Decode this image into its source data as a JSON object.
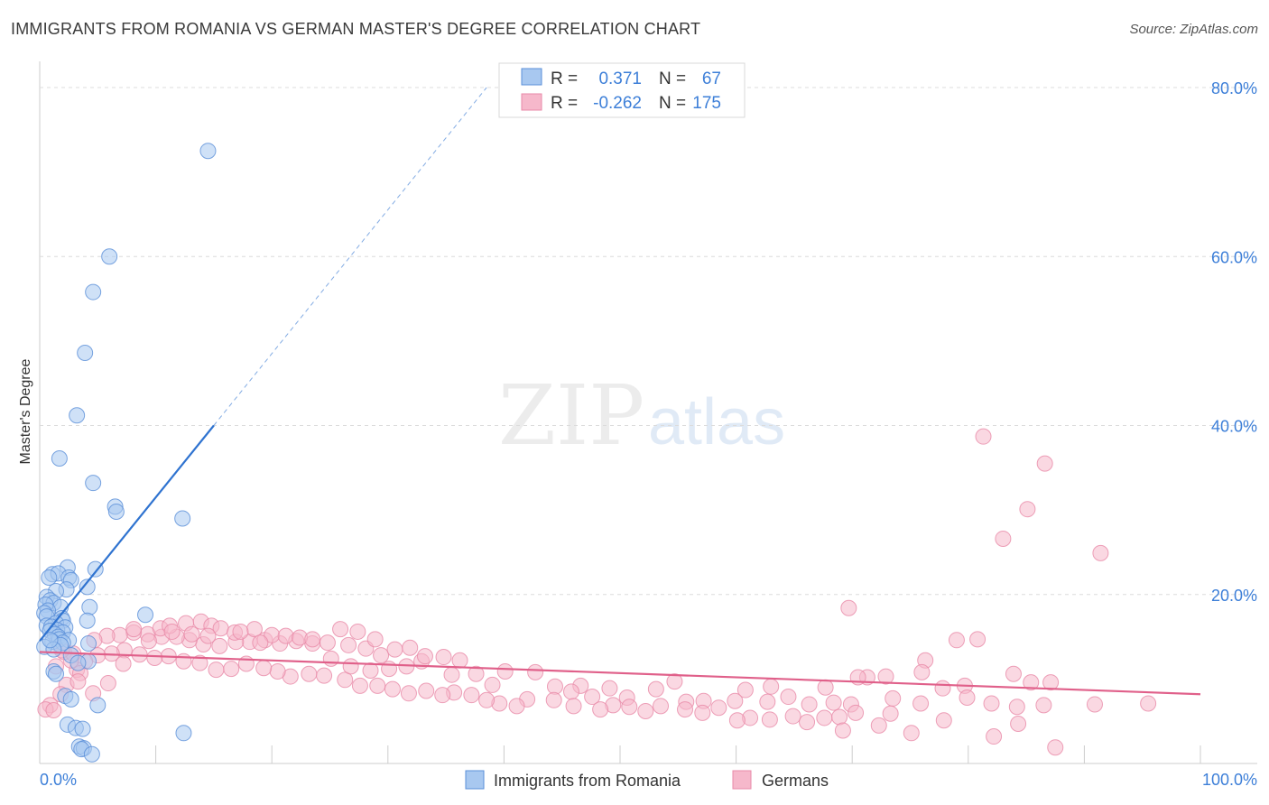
{
  "header": {
    "title": "IMMIGRANTS FROM ROMANIA VS GERMAN MASTER'S DEGREE CORRELATION CHART",
    "source": "Source: ZipAtlas.com"
  },
  "watermark": {
    "zip": "ZIP",
    "atlas": "atlas"
  },
  "colors": {
    "blue_fill": "#a8c8f0",
    "blue_stroke": "#5a8fd8",
    "blue_line": "#2f73d0",
    "pink_fill": "#f6b8cb",
    "pink_stroke": "#e88aa8",
    "pink_line": "#e0608a",
    "tick_text": "#3d7fd8",
    "grid": "#dcdcdc"
  },
  "legend": {
    "rows": [
      {
        "r_label": "R =",
        "r_value": "0.371",
        "n_label": "N =",
        "n_value": "67"
      },
      {
        "r_label": "R =",
        "r_value": "-0.262",
        "n_label": "N =",
        "n_value": "175"
      }
    ]
  },
  "bottom_legend": {
    "series_a": "Immigrants from Romania",
    "series_b": "Germans"
  },
  "chart_data": {
    "type": "scatter",
    "title": "IMMIGRANTS FROM ROMANIA VS GERMAN MASTER'S DEGREE CORRELATION CHART",
    "xlabel": "",
    "ylabel": "Master's Degree",
    "xlim": [
      0,
      100
    ],
    "ylim": [
      0,
      80
    ],
    "x_tick_labels": [
      "0.0%",
      "100.0%"
    ],
    "y_ticks": [
      20,
      40,
      60,
      80
    ],
    "y_tick_labels": [
      "20.0%",
      "40.0%",
      "60.0%",
      "80.0%"
    ],
    "grid": true,
    "series": [
      {
        "name": "Immigrants from Romania",
        "r": 0.371,
        "n": 67,
        "trend": {
          "x0": 0,
          "y0": 14.5,
          "x1": 15,
          "y1": 40,
          "dash_to_x": 38.5,
          "dash_to_y": 80
        },
        "points": [
          [
            14.5,
            72.5
          ],
          [
            6,
            60
          ],
          [
            4.6,
            55.8
          ],
          [
            3.9,
            48.6
          ],
          [
            3.2,
            41.2
          ],
          [
            1.7,
            36.1
          ],
          [
            4.6,
            33.2
          ],
          [
            6.5,
            30.4
          ],
          [
            6.6,
            29.8
          ],
          [
            12.3,
            29
          ],
          [
            2.4,
            23.2
          ],
          [
            4.8,
            23
          ],
          [
            1.1,
            22.4
          ],
          [
            1.6,
            22.5
          ],
          [
            0.8,
            22
          ],
          [
            2.5,
            22
          ],
          [
            2.7,
            21.7
          ],
          [
            4.1,
            20.9
          ],
          [
            2.3,
            20.6
          ],
          [
            1.4,
            20.4
          ],
          [
            0.6,
            19.7
          ],
          [
            0.9,
            19.3
          ],
          [
            1.2,
            19
          ],
          [
            0.5,
            18.8
          ],
          [
            1.8,
            18.5
          ],
          [
            4.3,
            18.5
          ],
          [
            0.7,
            18.1
          ],
          [
            0.4,
            17.8
          ],
          [
            9.1,
            17.6
          ],
          [
            0.6,
            17.4
          ],
          [
            1.9,
            17.2
          ],
          [
            2,
            16.9
          ],
          [
            4.1,
            16.9
          ],
          [
            1.4,
            16.6
          ],
          [
            0.6,
            16.3
          ],
          [
            1,
            16.2
          ],
          [
            2.2,
            16.1
          ],
          [
            1.5,
            15.8
          ],
          [
            0.9,
            15.7
          ],
          [
            2,
            15.5
          ],
          [
            1.3,
            15.3
          ],
          [
            1.6,
            15
          ],
          [
            1.7,
            14.7
          ],
          [
            2.5,
            14.6
          ],
          [
            1.1,
            14.4
          ],
          [
            2,
            14.3
          ],
          [
            4.2,
            14.2
          ],
          [
            1.8,
            14
          ],
          [
            0.4,
            13.8
          ],
          [
            1.2,
            13.5
          ],
          [
            2.7,
            12.8
          ],
          [
            4.2,
            12.1
          ],
          [
            3.3,
            11.9
          ],
          [
            1.2,
            10.9
          ],
          [
            1.4,
            10.6
          ],
          [
            2.2,
            8
          ],
          [
            2.7,
            7.6
          ],
          [
            5,
            6.9
          ],
          [
            2.4,
            4.6
          ],
          [
            3.1,
            4.2
          ],
          [
            3.7,
            4.1
          ],
          [
            12.4,
            3.6
          ],
          [
            3.4,
            2
          ],
          [
            3.8,
            1.8
          ],
          [
            3.6,
            1.7
          ],
          [
            4.5,
            1.1
          ],
          [
            0.9,
            14.6
          ]
        ]
      },
      {
        "name": "Germans",
        "r": -0.262,
        "n": 175,
        "trend": {
          "x0": 0,
          "y0": 13.2,
          "x1": 100,
          "y1": 8.2
        },
        "points": [
          [
            81.3,
            38.7
          ],
          [
            86.6,
            35.5
          ],
          [
            85.1,
            30.1
          ],
          [
            83,
            26.6
          ],
          [
            91.4,
            24.9
          ],
          [
            69.7,
            18.4
          ],
          [
            80.8,
            14.7
          ],
          [
            79,
            14.6
          ],
          [
            76.3,
            12.2
          ],
          [
            83.9,
            10.6
          ],
          [
            76,
            10.8
          ],
          [
            72.9,
            10.3
          ],
          [
            71.3,
            10.2
          ],
          [
            70.5,
            10.2
          ],
          [
            87.1,
            9.6
          ],
          [
            85.4,
            9.6
          ],
          [
            79.7,
            9.2
          ],
          [
            77.8,
            8.9
          ],
          [
            67.7,
            9
          ],
          [
            63,
            9.1
          ],
          [
            60.8,
            8.7
          ],
          [
            54.7,
            9.7
          ],
          [
            53.1,
            8.8
          ],
          [
            49.1,
            8.9
          ],
          [
            46.6,
            9.2
          ],
          [
            44.4,
            9.1
          ],
          [
            42.7,
            10.8
          ],
          [
            40.1,
            10.9
          ],
          [
            37.6,
            10.6
          ],
          [
            35.5,
            10.5
          ],
          [
            39,
            9.3
          ],
          [
            45.8,
            8.5
          ],
          [
            47.6,
            7.9
          ],
          [
            50.6,
            7.8
          ],
          [
            55.7,
            7.3
          ],
          [
            57.2,
            7.4
          ],
          [
            59.9,
            7.4
          ],
          [
            62.7,
            7.3
          ],
          [
            64.5,
            7.9
          ],
          [
            66.3,
            7
          ],
          [
            68.4,
            7.2
          ],
          [
            69.9,
            7
          ],
          [
            73.5,
            7.7
          ],
          [
            75.9,
            7.1
          ],
          [
            79.9,
            7.8
          ],
          [
            82,
            7.1
          ],
          [
            84.2,
            6.7
          ],
          [
            86.5,
            6.9
          ],
          [
            90.9,
            7
          ],
          [
            95.5,
            7.1
          ],
          [
            73.3,
            5.9
          ],
          [
            70.3,
            6
          ],
          [
            68.9,
            5.5
          ],
          [
            64.9,
            5.6
          ],
          [
            62.9,
            5.2
          ],
          [
            61.2,
            5.4
          ],
          [
            58.5,
            6.6
          ],
          [
            57.1,
            6
          ],
          [
            55.6,
            6.4
          ],
          [
            53.5,
            6.8
          ],
          [
            52.2,
            6.2
          ],
          [
            50.8,
            6.7
          ],
          [
            49.4,
            6.9
          ],
          [
            48.3,
            6.4
          ],
          [
            46,
            6.8
          ],
          [
            44.3,
            7.5
          ],
          [
            42,
            7.6
          ],
          [
            41.1,
            6.8
          ],
          [
            39.6,
            7.1
          ],
          [
            38.5,
            7.5
          ],
          [
            37.2,
            8.1
          ],
          [
            35.7,
            8.4
          ],
          [
            34.7,
            8.1
          ],
          [
            33.3,
            8.6
          ],
          [
            31.8,
            8.3
          ],
          [
            30.4,
            8.8
          ],
          [
            29.1,
            9.2
          ],
          [
            27.6,
            9.2
          ],
          [
            26.3,
            9.9
          ],
          [
            24.5,
            10.4
          ],
          [
            23.2,
            10.6
          ],
          [
            21.6,
            10.3
          ],
          [
            20.5,
            10.9
          ],
          [
            19.3,
            11.3
          ],
          [
            17.8,
            11.8
          ],
          [
            16.5,
            11.2
          ],
          [
            15.2,
            11.1
          ],
          [
            13.8,
            11.9
          ],
          [
            12.4,
            12.1
          ],
          [
            11.1,
            12.7
          ],
          [
            9.9,
            12.5
          ],
          [
            8.6,
            12.9
          ],
          [
            7.3,
            13.4
          ],
          [
            6.2,
            13
          ],
          [
            5,
            12.8
          ],
          [
            3.9,
            12.1
          ],
          [
            3.2,
            11.1
          ],
          [
            2.7,
            12.2
          ],
          [
            2.1,
            13.2
          ],
          [
            1.4,
            11.5
          ],
          [
            25.1,
            12.4
          ],
          [
            26.8,
            11.5
          ],
          [
            28.5,
            11
          ],
          [
            30.1,
            11.2
          ],
          [
            31.6,
            11.5
          ],
          [
            32.9,
            12.1
          ],
          [
            34.8,
            12.6
          ],
          [
            36.2,
            12.2
          ],
          [
            29.4,
            12.8
          ],
          [
            28.1,
            13.6
          ],
          [
            26.6,
            14
          ],
          [
            24.8,
            14.3
          ],
          [
            23.5,
            14.2
          ],
          [
            22.1,
            14.5
          ],
          [
            20.7,
            14.2
          ],
          [
            19.4,
            14.6
          ],
          [
            18.1,
            14.4
          ],
          [
            16.9,
            14.4
          ],
          [
            15.5,
            13.9
          ],
          [
            14.1,
            14.1
          ],
          [
            12.9,
            14.6
          ],
          [
            11.8,
            15
          ],
          [
            10.5,
            15
          ],
          [
            9.3,
            15.3
          ],
          [
            8.1,
            15.5
          ],
          [
            6.9,
            15.2
          ],
          [
            5.8,
            15.1
          ],
          [
            4.7,
            14.6
          ],
          [
            2.9,
            13
          ],
          [
            1.9,
            13.4
          ],
          [
            3.5,
            10.7
          ],
          [
            2.3,
            9.3
          ],
          [
            1.8,
            8.2
          ],
          [
            0.9,
            6.9
          ],
          [
            0.5,
            6.4
          ],
          [
            1.2,
            6.3
          ],
          [
            3.3,
            9.7
          ],
          [
            4.6,
            8.3
          ],
          [
            5.9,
            9.5
          ],
          [
            7.2,
            11.8
          ],
          [
            10.4,
            16
          ],
          [
            11.2,
            16.3
          ],
          [
            12.6,
            16.6
          ],
          [
            13.9,
            16.8
          ],
          [
            14.8,
            16.3
          ],
          [
            15.6,
            16
          ],
          [
            16.8,
            15.5
          ],
          [
            18.5,
            15.9
          ],
          [
            20,
            15.2
          ],
          [
            21.2,
            15.1
          ],
          [
            22.4,
            14.9
          ],
          [
            23.5,
            14.7
          ],
          [
            25.9,
            15.9
          ],
          [
            27.4,
            15.6
          ],
          [
            28.9,
            14.7
          ],
          [
            30.6,
            13.5
          ],
          [
            31.9,
            13.7
          ],
          [
            33.2,
            12.7
          ],
          [
            8.1,
            15.9
          ],
          [
            9.4,
            14.5
          ],
          [
            11.4,
            15.6
          ],
          [
            13.1,
            15.3
          ],
          [
            14.5,
            15.1
          ],
          [
            17.3,
            15.6
          ],
          [
            19,
            14.3
          ],
          [
            75.1,
            3.6
          ],
          [
            77.9,
            5.1
          ],
          [
            82.2,
            3.2
          ],
          [
            84.3,
            4.7
          ],
          [
            87.5,
            1.9
          ],
          [
            69.2,
            3.9
          ],
          [
            72.3,
            4.5
          ],
          [
            67.6,
            5.4
          ],
          [
            66.1,
            4.9
          ],
          [
            60.1,
            5.1
          ]
        ]
      }
    ]
  }
}
